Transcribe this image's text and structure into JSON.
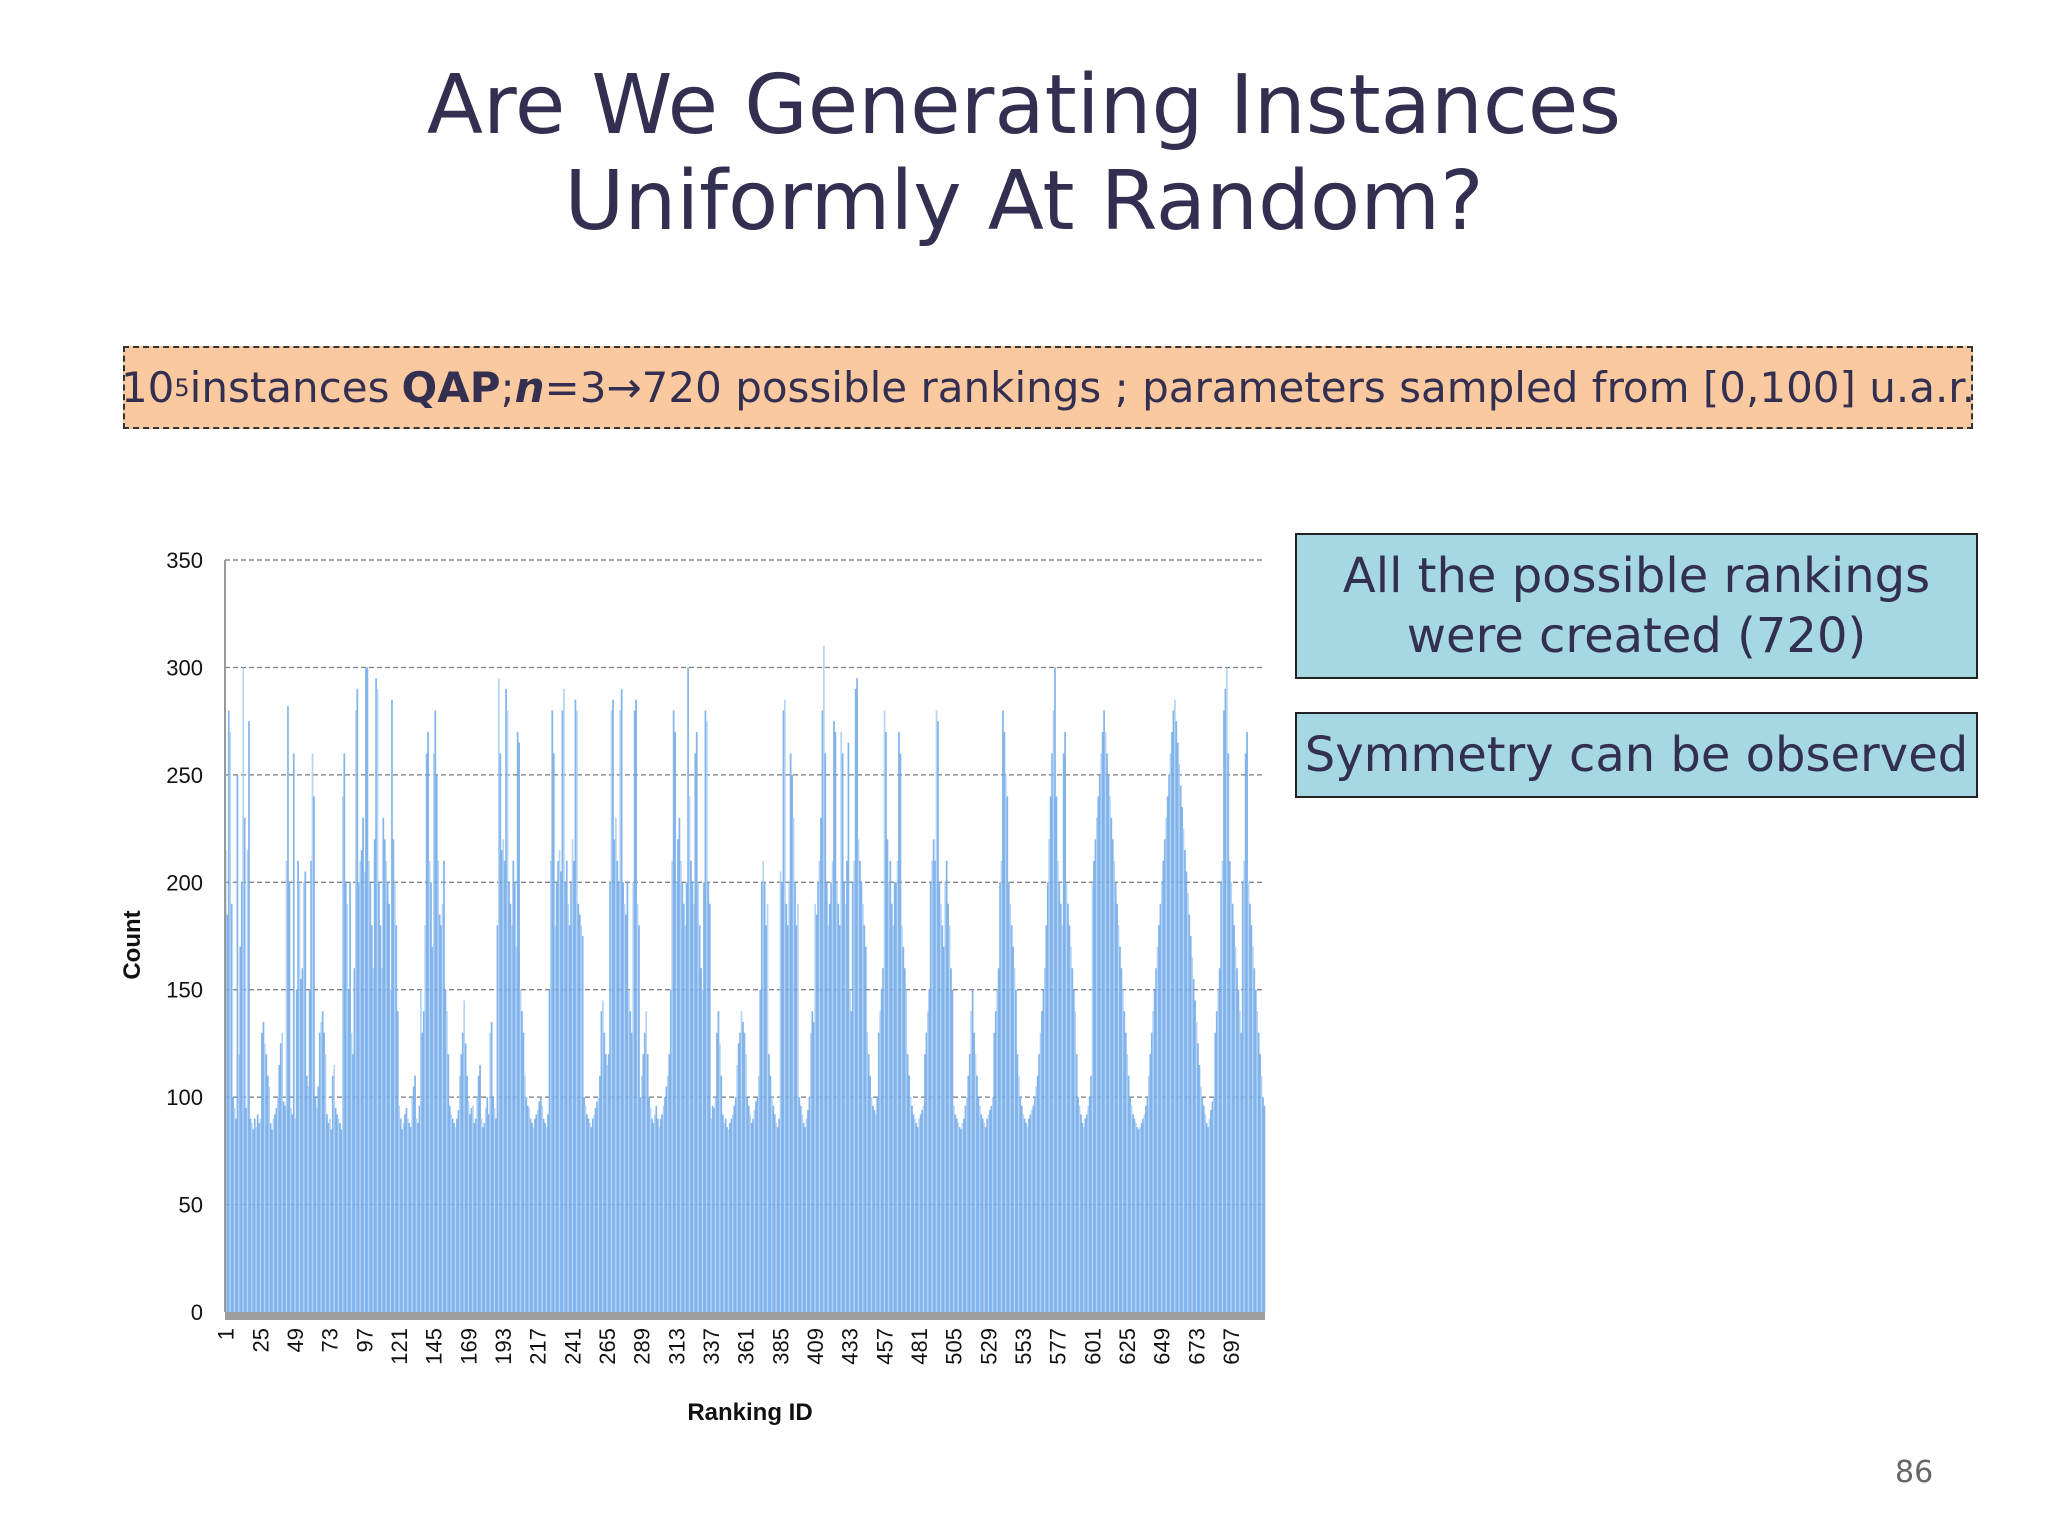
{
  "title_lines": [
    "Are We Generating Instances",
    "Uniformly At Random?"
  ],
  "banner": {
    "base": "10",
    "exp": "5",
    "instances": "instances",
    "qap": "QAP",
    "semicolon": ";",
    "n_var": "n",
    "n_eq": "=3",
    "arrow": "→",
    "rankings": "720 possible rankings ; parameters sampled from [0,100] u.a.r."
  },
  "boxes": {
    "created_line1": "All the possible rankings",
    "created_line2": "were created (720)",
    "symmetry": "Symmetry can be observed"
  },
  "page_number": "86",
  "colors": {
    "bar": "#6fa8e8",
    "bar_light": "#a9cdf5",
    "box": "#a6d8e3",
    "banner": "#fbc9a0"
  },
  "chart_data": {
    "type": "bar",
    "title": "",
    "xlabel": "Ranking ID",
    "ylabel": "Count",
    "ylim": [
      0,
      350
    ],
    "yticks": [
      0,
      50,
      100,
      150,
      200,
      250,
      300,
      350
    ],
    "xticks": [
      1,
      25,
      49,
      73,
      97,
      121,
      145,
      169,
      193,
      217,
      241,
      265,
      289,
      313,
      337,
      361,
      385,
      409,
      433,
      457,
      481,
      505,
      529,
      553,
      577,
      601,
      625,
      649,
      673,
      697
    ],
    "n_categories": 720,
    "grid": true,
    "values": [
      215,
      185,
      280,
      270,
      190,
      100,
      95,
      90,
      250,
      120,
      170,
      200,
      300,
      230,
      95,
      215,
      275,
      90,
      88,
      85,
      90,
      86,
      92,
      88,
      90,
      130,
      135,
      125,
      120,
      110,
      105,
      88,
      85,
      90,
      92,
      95,
      100,
      115,
      125,
      130,
      98,
      96,
      210,
      282,
      200,
      95,
      92,
      260,
      90,
      150,
      210,
      200,
      155,
      160,
      200,
      205,
      110,
      105,
      150,
      210,
      260,
      240,
      100,
      95,
      105,
      130,
      135,
      140,
      130,
      120,
      92,
      88,
      90,
      85,
      110,
      115,
      95,
      92,
      90,
      88,
      85,
      240,
      260,
      200,
      190,
      150,
      200,
      130,
      120,
      160,
      280,
      290,
      200,
      210,
      215,
      230,
      205,
      300,
      300,
      210,
      200,
      180,
      160,
      220,
      295,
      290,
      200,
      180,
      160,
      230,
      220,
      210,
      200,
      190,
      150,
      285,
      220,
      200,
      180,
      140,
      96,
      90,
      85,
      88,
      92,
      95,
      90,
      88,
      86,
      100,
      105,
      110,
      90,
      88,
      96,
      150,
      130,
      140,
      180,
      260,
      270,
      210,
      200,
      170,
      260,
      280,
      250,
      210,
      185,
      180,
      190,
      210,
      150,
      140,
      120,
      96,
      92,
      90,
      88,
      86,
      90,
      94,
      110,
      120,
      130,
      145,
      125,
      110,
      98,
      92,
      95,
      96,
      88,
      90,
      100,
      110,
      115,
      90,
      86,
      88,
      95,
      100,
      92,
      130,
      135,
      100,
      95,
      90,
      180,
      295,
      260,
      215,
      220,
      210,
      290,
      280,
      200,
      190,
      180,
      210,
      200,
      170,
      270,
      265,
      150,
      140,
      130,
      110,
      100,
      96,
      95,
      90,
      88,
      86,
      90,
      92,
      94,
      98,
      100,
      96,
      90,
      88,
      86,
      92,
      150,
      210,
      280,
      260,
      180,
      200,
      210,
      215,
      205,
      280,
      290,
      200,
      210,
      190,
      180,
      200,
      220,
      210,
      285,
      280,
      190,
      185,
      180,
      175,
      100,
      96,
      92,
      90,
      88,
      86,
      90,
      92,
      95,
      98,
      100,
      110,
      140,
      145,
      130,
      120,
      115,
      120,
      200,
      280,
      285,
      220,
      230,
      210,
      200,
      280,
      290,
      200,
      190,
      185,
      200,
      150,
      140,
      130,
      200,
      280,
      285,
      190,
      180,
      100,
      110,
      120,
      130,
      140,
      120,
      100,
      95,
      90,
      88,
      92,
      96,
      90,
      86,
      90,
      92,
      96,
      100,
      105,
      110,
      120,
      150,
      210,
      280,
      270,
      200,
      220,
      230,
      210,
      200,
      190,
      180,
      200,
      300,
      240,
      210,
      200,
      190,
      260,
      270,
      200,
      180,
      160,
      150,
      200,
      280,
      275,
      200,
      190,
      90,
      96,
      95,
      100,
      130,
      140,
      125,
      110,
      92,
      88,
      90,
      86,
      85,
      88,
      90,
      92,
      96,
      100,
      115,
      125,
      130,
      140,
      135,
      130,
      120,
      100,
      96,
      92,
      88,
      90,
      94,
      98,
      100,
      110,
      150,
      200,
      210,
      200,
      180,
      190,
      120,
      110,
      100,
      96,
      92,
      88,
      86,
      90,
      205,
      200,
      280,
      285,
      190,
      180,
      200,
      260,
      250,
      230,
      200,
      180,
      190,
      100,
      96,
      92,
      88,
      86,
      90,
      94,
      100,
      130,
      140,
      135,
      190,
      185,
      200,
      210,
      230,
      280,
      310,
      260,
      200,
      180,
      190,
      200,
      210,
      275,
      270,
      200,
      190,
      180,
      270,
      260,
      200,
      190,
      210,
      265,
      150,
      140,
      200,
      210,
      290,
      295,
      220,
      210,
      200,
      190,
      180,
      170,
      130,
      120,
      110,
      100,
      96,
      94,
      92,
      100,
      130,
      140,
      150,
      160,
      280,
      270,
      220,
      200,
      210,
      190,
      180,
      200,
      200,
      210,
      270,
      260,
      180,
      170,
      160,
      150,
      120,
      110,
      100,
      96,
      92,
      90,
      88,
      86,
      90,
      92,
      94,
      96,
      120,
      130,
      140,
      150,
      200,
      210,
      220,
      210,
      280,
      275,
      200,
      190,
      180,
      170,
      200,
      210,
      190,
      180,
      160,
      150,
      96,
      92,
      90,
      88,
      86,
      85,
      88,
      90,
      96,
      100,
      110,
      120,
      140,
      150,
      130,
      120,
      110,
      100,
      96,
      92,
      90,
      88,
      86,
      90,
      92,
      94,
      96,
      100,
      130,
      140,
      150,
      160,
      200,
      210,
      280,
      270,
      250,
      240,
      200,
      190,
      180,
      170,
      160,
      150,
      120,
      110,
      100,
      96,
      92,
      90,
      88,
      86,
      90,
      92,
      94,
      96,
      100,
      105,
      110,
      120,
      130,
      140,
      150,
      160,
      180,
      200,
      220,
      240,
      260,
      280,
      300,
      240,
      210,
      200,
      190,
      180,
      260,
      270,
      200,
      190,
      180,
      170,
      160,
      150,
      140,
      120,
      100,
      96,
      92,
      88,
      86,
      90,
      92,
      96,
      100,
      110,
      200,
      210,
      220,
      230,
      240,
      250,
      260,
      270,
      280,
      270,
      260,
      250,
      240,
      230,
      220,
      210,
      200,
      190,
      180,
      170,
      160,
      150,
      140,
      130,
      120,
      110,
      100,
      96,
      92,
      90,
      88,
      86,
      85,
      86,
      88,
      90,
      92,
      96,
      100,
      110,
      120,
      130,
      140,
      150,
      160,
      170,
      180,
      190,
      200,
      210,
      220,
      230,
      240,
      250,
      260,
      270,
      280,
      285,
      275,
      265,
      255,
      245,
      235,
      225,
      215,
      205,
      195,
      185,
      175,
      165,
      155,
      145,
      135,
      125,
      115,
      105,
      100,
      96,
      92,
      88,
      86,
      90,
      94,
      98,
      100,
      130,
      140,
      150,
      160,
      200,
      210,
      280,
      290,
      300,
      260,
      210,
      200,
      190,
      180,
      170,
      160,
      150,
      140,
      130,
      200,
      210,
      260,
      270,
      200,
      190,
      180,
      170,
      160,
      150,
      140,
      130,
      120,
      110,
      100,
      96
    ]
  }
}
